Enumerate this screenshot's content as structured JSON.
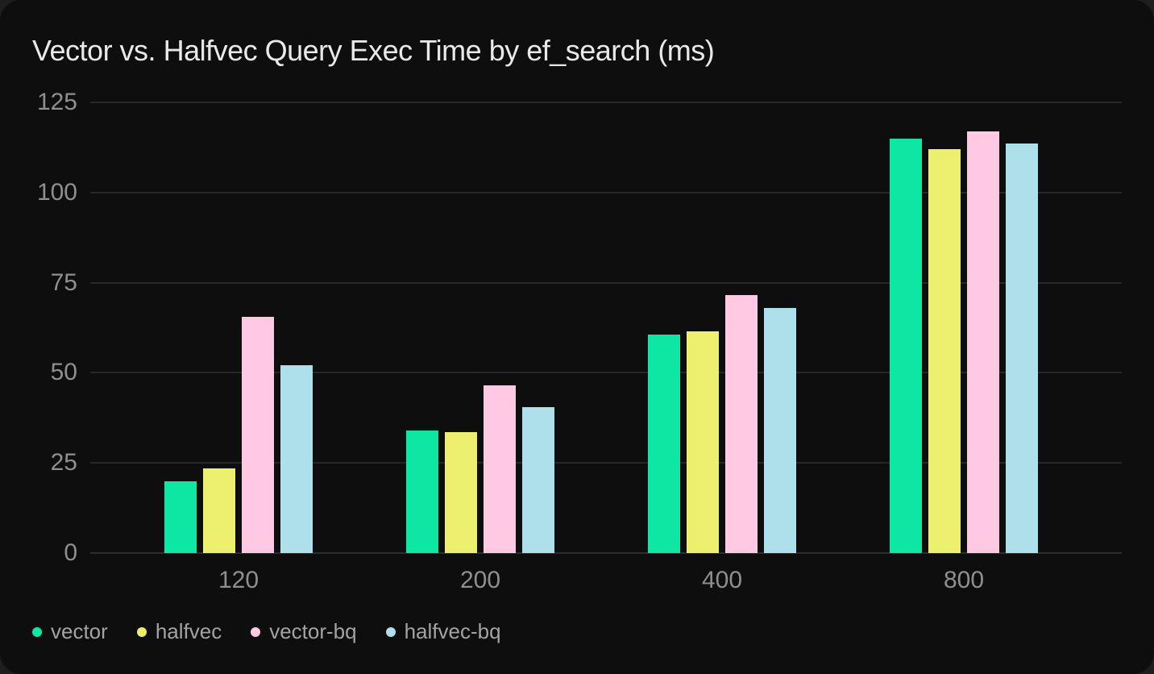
{
  "page": {
    "background": "#1e1e1e",
    "card_background": "#0e0e0f"
  },
  "chart_data": {
    "type": "bar",
    "title": "Vector vs. Halfvec Query Exec Time by ef_search (ms)",
    "xlabel": "",
    "ylabel": "",
    "categories": [
      "120",
      "200",
      "400",
      "800"
    ],
    "series": [
      {
        "name": "vector",
        "color": "#0ee6a3",
        "values": [
          20,
          34,
          60.5,
          115
        ]
      },
      {
        "name": "halfvec",
        "color": "#edef6e",
        "values": [
          23.5,
          33.5,
          61.5,
          112
        ]
      },
      {
        "name": "vector-bq",
        "color": "#ffc9e3",
        "values": [
          65.5,
          46.5,
          71.5,
          117
        ]
      },
      {
        "name": "halfvec-bq",
        "color": "#ade0eb",
        "values": [
          52,
          40.5,
          68,
          113.5
        ]
      }
    ],
    "ylim": [
      0,
      125
    ],
    "yticks": [
      0,
      25,
      50,
      75,
      100,
      125
    ],
    "grid": true,
    "legend_position": "bottom-left",
    "colors": {
      "grid": "#272727",
      "axis_text": "#8f8f8f",
      "title_text": "#e9e9e9",
      "legend_text": "#a3a3a3"
    }
  }
}
